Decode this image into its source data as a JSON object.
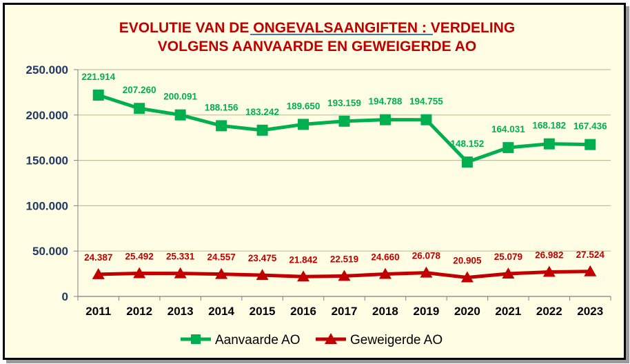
{
  "chart_data": {
    "type": "line",
    "title_lines": [
      "EVOLUTIE VAN DE ONGEVALSAANGIFTEN : VERDELING",
      "VOLGENS AANVAARDE EN GEWEIGERDE AO"
    ],
    "title_underlined": "ONGEVALSAANGIFTEN :",
    "categories": [
      "2011",
      "2012",
      "2013",
      "2014",
      "2015",
      "2016",
      "2017",
      "2018",
      "2019",
      "2020",
      "2021",
      "2022",
      "2023"
    ],
    "yticks": [
      "0",
      "50.000",
      "100.000",
      "150.000",
      "200.000",
      "250.000"
    ],
    "ylim": [
      0,
      250000
    ],
    "grid": true,
    "legend_position": "bottom",
    "series": [
      {
        "name": "Aanvaarde AO",
        "color": "#00B050",
        "marker": "square",
        "values": [
          221914,
          207260,
          200091,
          188156,
          183242,
          189650,
          193159,
          194788,
          194755,
          148152,
          164031,
          168182,
          167436
        ],
        "labels": [
          "221.914",
          "207.260",
          "200.091",
          "188.156",
          "183.242",
          "189.650",
          "193.159",
          "194.788",
          "194.755",
          "148.152",
          "164.031",
          "168.182",
          "167.436"
        ]
      },
      {
        "name": "Geweigerde AO",
        "color": "#C00000",
        "marker": "triangle",
        "values": [
          24387,
          25492,
          25331,
          24557,
          23475,
          21842,
          22519,
          24660,
          26078,
          20905,
          25079,
          26982,
          27524
        ],
        "labels": [
          "24.387",
          "25.492",
          "25.331",
          "24.557",
          "23.475",
          "21.842",
          "22.519",
          "24.660",
          "26.078",
          "20.905",
          "25.079",
          "26.982",
          "27.524"
        ]
      }
    ]
  }
}
